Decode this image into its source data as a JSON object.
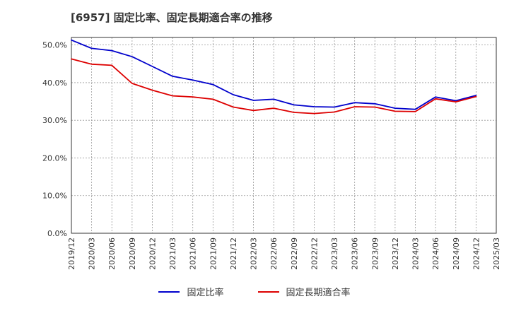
{
  "chart_data": {
    "type": "line",
    "title": "[6957]  固定比率、固定長期適合率の推移",
    "xlabel": "",
    "ylabel": "",
    "ylim": [
      0,
      52
    ],
    "yticks": [
      0,
      10,
      20,
      30,
      40,
      50
    ],
    "ytick_labels": [
      "0.0%",
      "10.0%",
      "20.0%",
      "30.0%",
      "40.0%",
      "50.0%"
    ],
    "categories": [
      "2019/12",
      "2020/03",
      "2020/06",
      "2020/09",
      "2020/12",
      "2021/03",
      "2021/06",
      "2021/09",
      "2021/12",
      "2022/03",
      "2022/06",
      "2022/09",
      "2022/12",
      "2023/03",
      "2023/06",
      "2023/09",
      "2023/12",
      "2024/03",
      "2024/06",
      "2024/09",
      "2024/12",
      "2025/03"
    ],
    "grid": true,
    "legend_position": "bottom",
    "series": [
      {
        "name": "固定比率",
        "color": "#0000cc",
        "values": [
          51.3,
          49.1,
          48.5,
          46.9,
          44.3,
          41.7,
          40.7,
          39.5,
          36.8,
          35.3,
          35.6,
          34.1,
          33.6,
          33.5,
          34.7,
          34.4,
          33.2,
          32.9,
          36.2,
          35.2,
          36.6,
          null
        ]
      },
      {
        "name": "固定長期適合率",
        "color": "#dd0000",
        "values": [
          46.3,
          44.9,
          44.6,
          39.8,
          38.0,
          36.5,
          36.2,
          35.6,
          33.5,
          32.6,
          33.2,
          32.1,
          31.8,
          32.2,
          33.6,
          33.5,
          32.4,
          32.3,
          35.7,
          34.9,
          36.3,
          null
        ]
      }
    ]
  }
}
